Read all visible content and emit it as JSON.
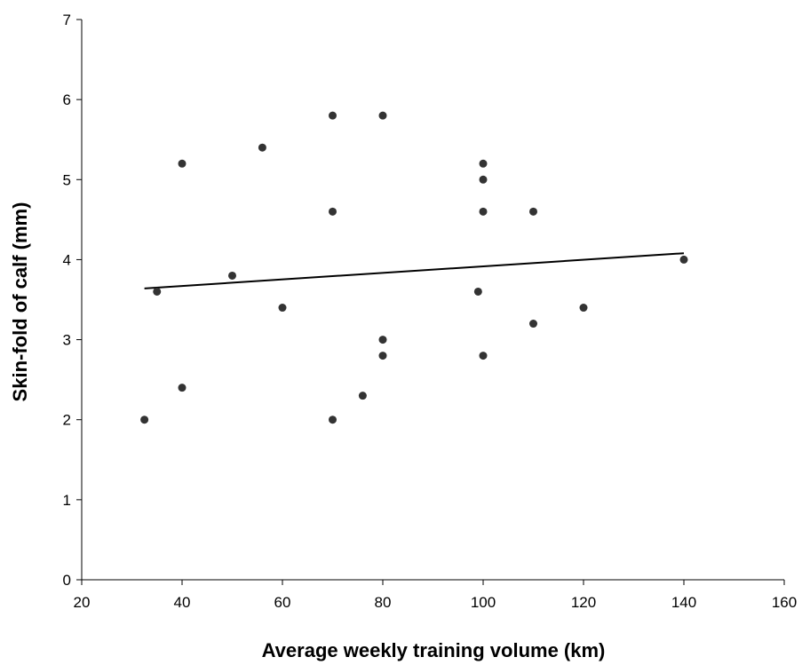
{
  "chart_data": {
    "type": "scatter",
    "title": "",
    "xlabel": "Average weekly training volume (km)",
    "ylabel": "Skin-fold of calf (mm)",
    "xlim": [
      20,
      160
    ],
    "ylim": [
      0,
      7
    ],
    "xticks": [
      "20",
      "40",
      "60",
      "80",
      "100",
      "120",
      "140",
      "160"
    ],
    "yticks": [
      "0",
      "1",
      "2",
      "3",
      "4",
      "5",
      "6",
      "7"
    ],
    "grid": false,
    "legend": "none",
    "point_color": "#333333",
    "series": [
      {
        "points": [
          {
            "x": 32.5,
            "y": 2.0
          },
          {
            "x": 35,
            "y": 3.6
          },
          {
            "x": 40,
            "y": 5.2
          },
          {
            "x": 40,
            "y": 2.4
          },
          {
            "x": 50,
            "y": 3.8
          },
          {
            "x": 56,
            "y": 5.4
          },
          {
            "x": 60,
            "y": 3.4
          },
          {
            "x": 70,
            "y": 5.8
          },
          {
            "x": 70,
            "y": 4.6
          },
          {
            "x": 70,
            "y": 2.0
          },
          {
            "x": 76,
            "y": 2.3
          },
          {
            "x": 80,
            "y": 5.8
          },
          {
            "x": 80,
            "y": 3.0
          },
          {
            "x": 80,
            "y": 2.8
          },
          {
            "x": 99,
            "y": 3.6
          },
          {
            "x": 100,
            "y": 5.2
          },
          {
            "x": 100,
            "y": 5.0
          },
          {
            "x": 100,
            "y": 4.6
          },
          {
            "x": 100,
            "y": 2.8
          },
          {
            "x": 110,
            "y": 4.6
          },
          {
            "x": 110,
            "y": 3.2
          },
          {
            "x": 120,
            "y": 3.4
          },
          {
            "x": 140,
            "y": 4.0
          }
        ]
      }
    ],
    "trendline": {
      "x": [
        32.5,
        140
      ],
      "y": [
        3.64,
        4.08
      ]
    }
  }
}
